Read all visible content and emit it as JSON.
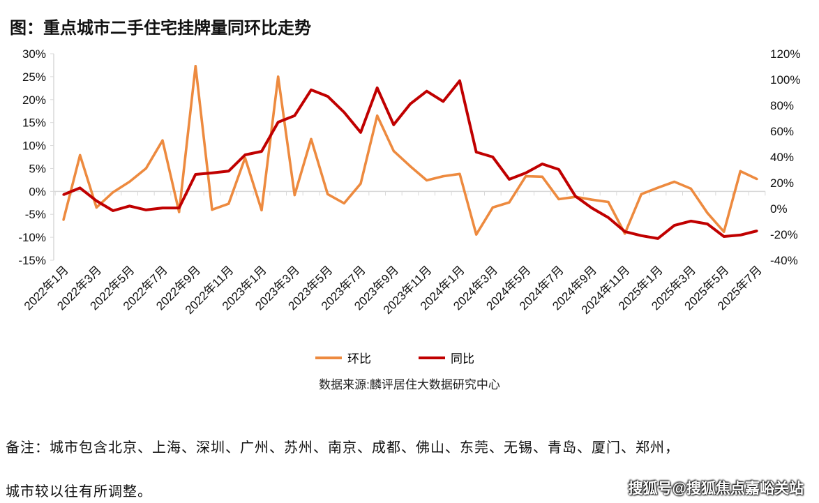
{
  "title": "图：重点城市二手住宅挂牌量同环比走势",
  "source": "数据来源:麟评居住大数据研究中心",
  "note_line1": "备注：城市包含北京、上海、深圳、广州、苏州、南京、成都、佛山、东莞、无锡、青岛、厦门、郑州，",
  "note_line2": "城市较以往有所调整。",
  "watermark": "搜狐号@搜狐焦点嘉峪关站",
  "chart_data": {
    "type": "line",
    "title": "图：重点城市二手住宅挂牌量同环比走势",
    "x": [
      "2022年1月",
      "2022年2月",
      "2022年3月",
      "2022年4月",
      "2022年5月",
      "2022年6月",
      "2022年7月",
      "2022年8月",
      "2022年9月",
      "2022年10月",
      "2022年11月",
      "2022年12月",
      "2023年1月",
      "2023年2月",
      "2023年3月",
      "2023年4月",
      "2023年5月",
      "2023年6月",
      "2023年7月",
      "2023年8月",
      "2023年9月",
      "2023年10月",
      "2023年11月",
      "2023年12月",
      "2024年1月",
      "2024年2月",
      "2024年3月",
      "2024年4月",
      "2024年5月",
      "2024年6月",
      "2024年7月",
      "2024年8月",
      "2024年9月",
      "2024年10月",
      "2024年11月",
      "2024年12月",
      "2025年1月",
      "2025年2月",
      "2025年3月",
      "2025年4月",
      "2025年5月",
      "2025年6月",
      "2025年7月"
    ],
    "x_tick_labels": [
      "2022年1月",
      "2022年3月",
      "2022年5月",
      "2022年7月",
      "2022年9月",
      "2022年11月",
      "2023年1月",
      "2023年3月",
      "2023年5月",
      "2023年7月",
      "2023年9月",
      "2023年11月",
      "2024年1月",
      "2024年3月",
      "2024年5月",
      "2024年7月",
      "2024年9月",
      "2024年11月",
      "2025年1月",
      "2025年3月",
      "2025年5月",
      "2025年7月"
    ],
    "y_left": {
      "ylim": [
        -15,
        30
      ],
      "ticks": [
        "30%",
        "25%",
        "20%",
        "15%",
        "10%",
        "5%",
        "0%",
        "-5%",
        "-10%",
        "-15%"
      ]
    },
    "y_right": {
      "ylim": [
        -40,
        120
      ],
      "ticks": [
        "120%",
        "100%",
        "80%",
        "60%",
        "40%",
        "20%",
        "0%",
        "-20%",
        "-40%"
      ]
    },
    "series": [
      {
        "name": "环比",
        "axis": "left",
        "color": "#ED8A3F",
        "values": [
          -6.2,
          7.9,
          -3.5,
          -0.2,
          2.1,
          5.0,
          11.1,
          -4.5,
          27.3,
          -4.0,
          -2.7,
          7.3,
          -4.1,
          25.0,
          -0.8,
          11.4,
          -0.6,
          -2.6,
          1.7,
          16.5,
          8.8,
          5.5,
          2.4,
          3.3,
          3.8,
          -9.4,
          -3.5,
          -2.4,
          3.3,
          3.2,
          -1.7,
          -1.2,
          -1.8,
          -2.3,
          -9.2,
          -0.6,
          0.8,
          2.1,
          0.6,
          -4.7,
          -8.8,
          4.4,
          2.7
        ]
      },
      {
        "name": "同比",
        "axis": "right",
        "color": "#C00000",
        "values": [
          10.8,
          16.0,
          6.0,
          -1.6,
          2.0,
          -1.0,
          0.5,
          0.5,
          26.5,
          27.6,
          29.0,
          41.6,
          44.3,
          67.0,
          72.0,
          92.0,
          87.0,
          74.6,
          59.0,
          93.5,
          65.0,
          81.0,
          91.0,
          83.0,
          99.0,
          43.8,
          40.0,
          22.7,
          27.6,
          34.6,
          30.3,
          9.7,
          0.5,
          -7.0,
          -17.8,
          -21.0,
          -23.2,
          -13.0,
          -9.7,
          -11.9,
          -21.6,
          -20.5,
          -17.3
        ]
      }
    ],
    "legend": "bottom",
    "grid": false
  }
}
